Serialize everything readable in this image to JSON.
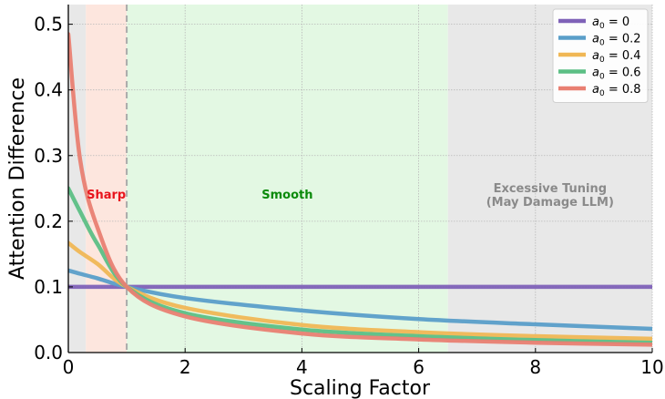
{
  "chart_data": {
    "type": "line",
    "title": "",
    "xlabel": "Scaling Factor",
    "ylabel": "Attention Difference",
    "xlim": [
      0,
      10
    ],
    "ylim": [
      0,
      0.53
    ],
    "x_ticks": [
      0,
      2,
      4,
      6,
      8,
      10
    ],
    "x_tick_labels": [
      "0",
      "2",
      "4",
      "6",
      "8",
      "10"
    ],
    "y_ticks": [
      0.0,
      0.1,
      0.2,
      0.3,
      0.4,
      0.5
    ],
    "y_tick_labels": [
      "0.0",
      "0.1",
      "0.2",
      "0.3",
      "0.4",
      "0.5"
    ],
    "grid": true,
    "legend_position": "top-right",
    "reference_line": {
      "x": 1,
      "style": "dashed",
      "color": "#aaaaaa"
    },
    "regions": [
      {
        "name": "left-edge",
        "x": [
          0,
          0.3
        ],
        "color": "#e8e8e8",
        "label": ""
      },
      {
        "name": "sharp",
        "x": [
          0.3,
          1.0
        ],
        "color": "#fde6de",
        "label": "Sharp",
        "label_color": "#e8141c"
      },
      {
        "name": "smooth",
        "x": [
          1.0,
          6.5
        ],
        "color": "#e3f8e3",
        "label": "Smooth",
        "label_color": "#0a8a0a"
      },
      {
        "name": "excessive",
        "x": [
          6.5,
          10
        ],
        "color": "#e8e8e8",
        "label": "Excessive Tuning\n(May Damage LLM)",
        "label_color": "#8a8a8a"
      }
    ],
    "series": [
      {
        "name": "a0 = 0",
        "legend_sub": "0",
        "legend_rest": " = 0",
        "color": "#7f62b8",
        "x": [
          0,
          0.2,
          0.5,
          1,
          2,
          4,
          6,
          8,
          10
        ],
        "y": [
          0.1,
          0.1,
          0.1,
          0.1,
          0.1,
          0.1,
          0.1,
          0.1,
          0.1
        ]
      },
      {
        "name": "a0 = 0.2",
        "legend_sub": "0",
        "legend_rest": " = 0.2",
        "color": "#5a9ec9",
        "x": [
          0,
          0.2,
          0.5,
          1,
          2,
          4,
          6,
          8,
          10
        ],
        "y": [
          0.125,
          0.12,
          0.113,
          0.1,
          0.083,
          0.064,
          0.051,
          0.043,
          0.036
        ]
      },
      {
        "name": "a0 = 0.4",
        "legend_sub": "0",
        "legend_rest": " = 0.4",
        "color": "#f0b755",
        "x": [
          0,
          0.2,
          0.5,
          1,
          2,
          4,
          6,
          8,
          10
        ],
        "y": [
          0.167,
          0.153,
          0.135,
          0.1,
          0.068,
          0.042,
          0.031,
          0.025,
          0.021
        ]
      },
      {
        "name": "a0 = 0.6",
        "legend_sub": "0",
        "legend_rest": " = 0.6",
        "color": "#5cbf85",
        "x": [
          0,
          0.2,
          0.5,
          1,
          2,
          4,
          6,
          8,
          10
        ],
        "y": [
          0.25,
          0.215,
          0.165,
          0.1,
          0.06,
          0.035,
          0.025,
          0.019,
          0.015
        ]
      },
      {
        "name": "a0 = 0.8",
        "legend_sub": "0",
        "legend_rest": " = 0.8",
        "color": "#e97f72",
        "x": [
          0,
          0.2,
          0.5,
          1,
          2,
          4,
          6,
          8,
          10
        ],
        "y": [
          0.485,
          0.295,
          0.19,
          0.1,
          0.055,
          0.029,
          0.02,
          0.015,
          0.012
        ]
      }
    ]
  }
}
